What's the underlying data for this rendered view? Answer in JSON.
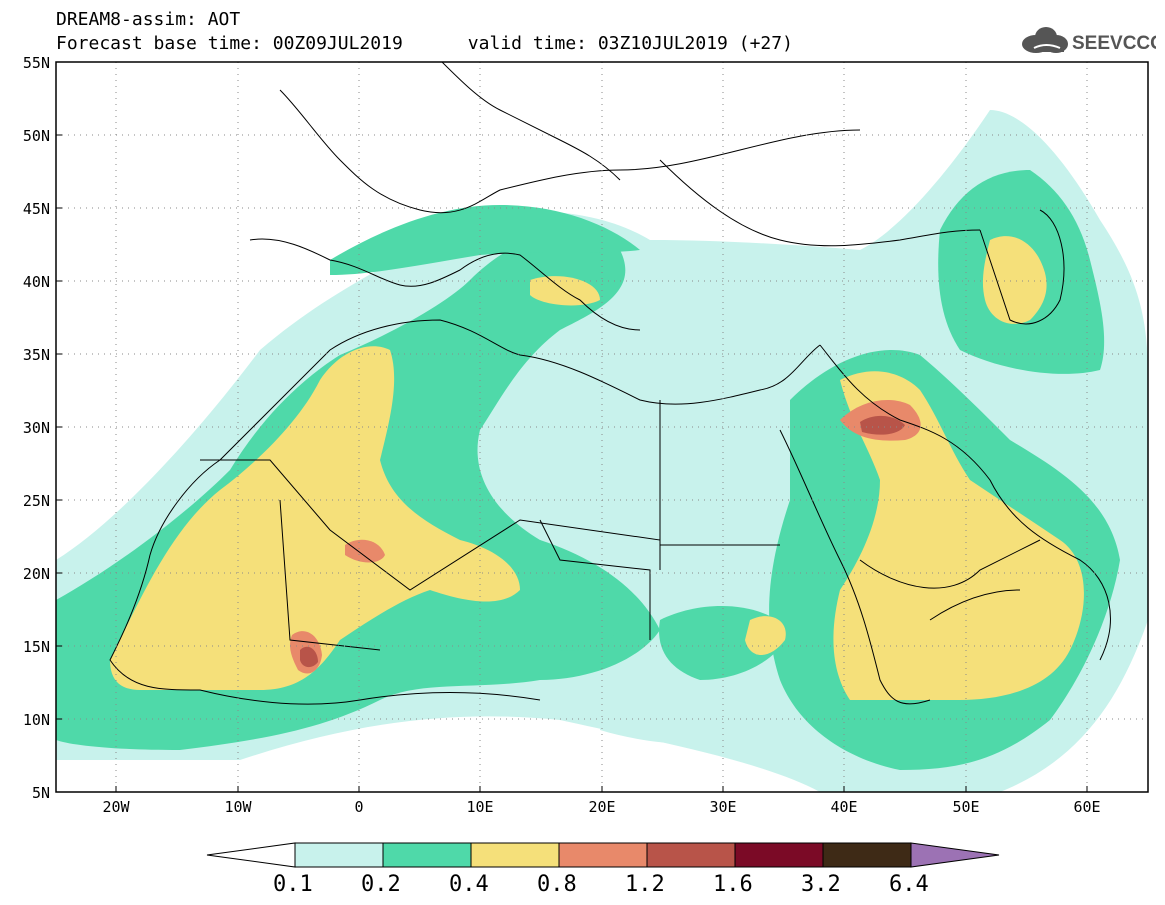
{
  "title": {
    "line1": "DREAM8-assim: AOT",
    "line2": "Forecast base time: 00Z09JUL2019      valid time: 03Z10JUL2019 (+27)"
  },
  "logo": {
    "text": "SEEVCCC",
    "icon": "cloud-icon",
    "color": "#555555"
  },
  "map": {
    "lat_ticks": [
      "55N",
      "50N",
      "45N",
      "40N",
      "35N",
      "30N",
      "25N",
      "20N",
      "15N",
      "10N",
      "5N"
    ],
    "lon_ticks": [
      "20W",
      "10W",
      "0",
      "10E",
      "20E",
      "30E",
      "40E",
      "50E",
      "60E"
    ],
    "grid": "dotted"
  },
  "colorbar": {
    "labels": [
      "0.1",
      "0.2",
      "0.4",
      "0.8",
      "1.2",
      "1.6",
      "3.2",
      "6.4"
    ],
    "colors": [
      "#c8f2ec",
      "#4fd9a9",
      "#f5e07a",
      "#e8896a",
      "#b85449",
      "#7b0a26",
      "#3e2a16",
      "#9c72b4"
    ]
  }
}
